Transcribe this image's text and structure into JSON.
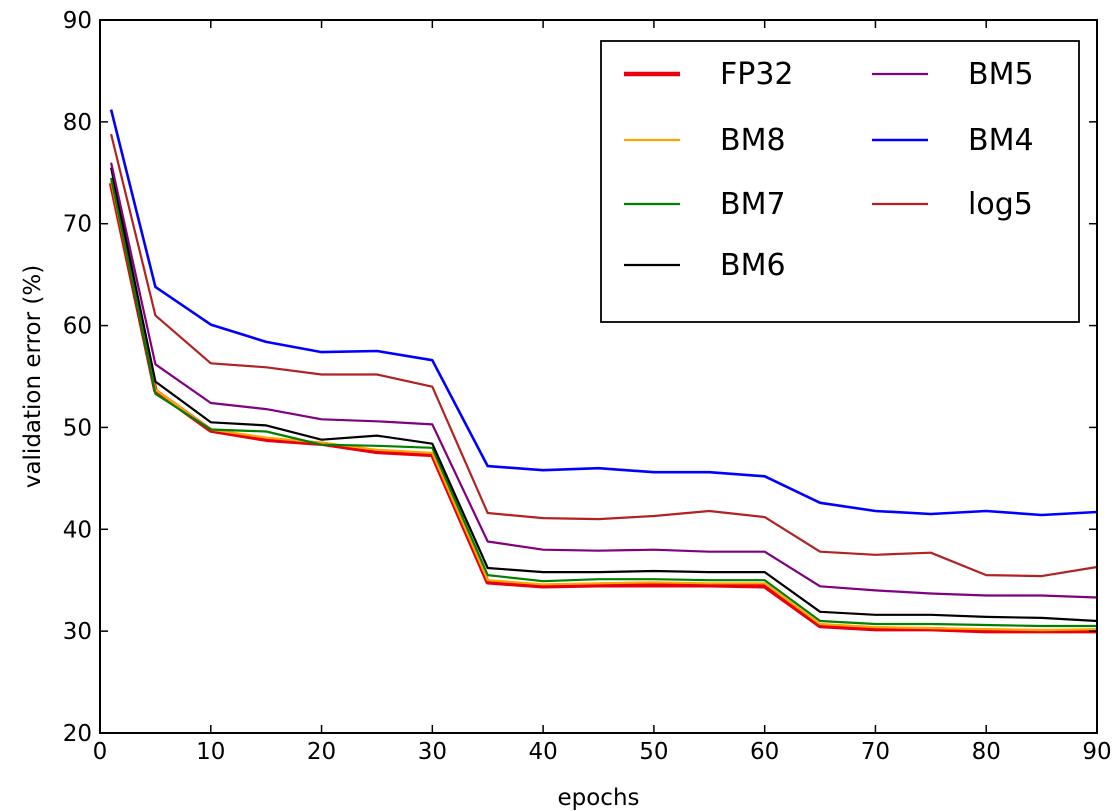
{
  "chart_data": {
    "type": "line",
    "title": "",
    "xlabel": "epochs",
    "ylabel": "validation error (%)",
    "xlim": [
      0,
      90
    ],
    "ylim": [
      20,
      90
    ],
    "xticks": [
      0,
      10,
      20,
      30,
      40,
      50,
      60,
      70,
      80,
      90
    ],
    "yticks": [
      20,
      30,
      40,
      50,
      60,
      70,
      80,
      90
    ],
    "grid": false,
    "legend_position": "top-right",
    "legend_columns": 2,
    "x": [
      1,
      5,
      10,
      15,
      20,
      25,
      30,
      35,
      40,
      45,
      50,
      55,
      60,
      65,
      70,
      75,
      80,
      85,
      90
    ],
    "series": [
      {
        "name": "FP32",
        "color": "#e8000b",
        "line_width": 4.5,
        "values": [
          74,
          53.6,
          49.7,
          48.8,
          48.4,
          47.6,
          47.3,
          34.8,
          34.4,
          34.5,
          34.5,
          34.5,
          34.4,
          30.5,
          30.2,
          30.2,
          30.0,
          30.0,
          30.0
        ]
      },
      {
        "name": "BM8",
        "color": "#ffa500",
        "line_width": 2.2,
        "values": [
          74.2,
          53.7,
          49.8,
          49.0,
          48.5,
          47.8,
          47.5,
          35.0,
          34.6,
          34.7,
          34.8,
          34.7,
          34.7,
          30.7,
          30.4,
          30.3,
          30.2,
          30.1,
          30.2
        ]
      },
      {
        "name": "BM7",
        "color": "#008000",
        "line_width": 2.2,
        "values": [
          74.5,
          53.3,
          49.8,
          49.6,
          48.3,
          48.2,
          48.0,
          35.5,
          34.9,
          35.1,
          35.1,
          35.0,
          35.0,
          31.0,
          30.7,
          30.7,
          30.6,
          30.5,
          30.5
        ]
      },
      {
        "name": "BM6",
        "color": "#000000",
        "line_width": 2.2,
        "values": [
          75.5,
          54.5,
          50.5,
          50.2,
          48.8,
          49.2,
          48.4,
          36.2,
          35.8,
          35.8,
          35.9,
          35.8,
          35.8,
          31.9,
          31.6,
          31.6,
          31.4,
          31.3,
          31.0
        ]
      },
      {
        "name": "BM5",
        "color": "#800080",
        "line_width": 2.2,
        "values": [
          76.0,
          56.2,
          52.4,
          51.8,
          50.8,
          50.6,
          50.3,
          38.8,
          38.0,
          37.9,
          38.0,
          37.8,
          37.8,
          34.4,
          34.0,
          33.7,
          33.5,
          33.5,
          33.3
        ]
      },
      {
        "name": "BM4",
        "color": "#0000ff",
        "line_width": 2.6,
        "values": [
          81.2,
          63.8,
          60.1,
          58.4,
          57.4,
          57.5,
          56.6,
          46.2,
          45.8,
          46.0,
          45.6,
          45.6,
          45.2,
          42.6,
          41.8,
          41.5,
          41.8,
          41.4,
          41.7
        ]
      },
      {
        "name": "log5",
        "color": "#b22222",
        "line_width": 2.2,
        "values": [
          78.8,
          61.0,
          56.3,
          55.9,
          55.2,
          55.2,
          54.0,
          41.6,
          41.1,
          41.0,
          41.3,
          41.8,
          41.2,
          37.8,
          37.5,
          37.7,
          35.5,
          35.4,
          36.3
        ]
      }
    ]
  }
}
